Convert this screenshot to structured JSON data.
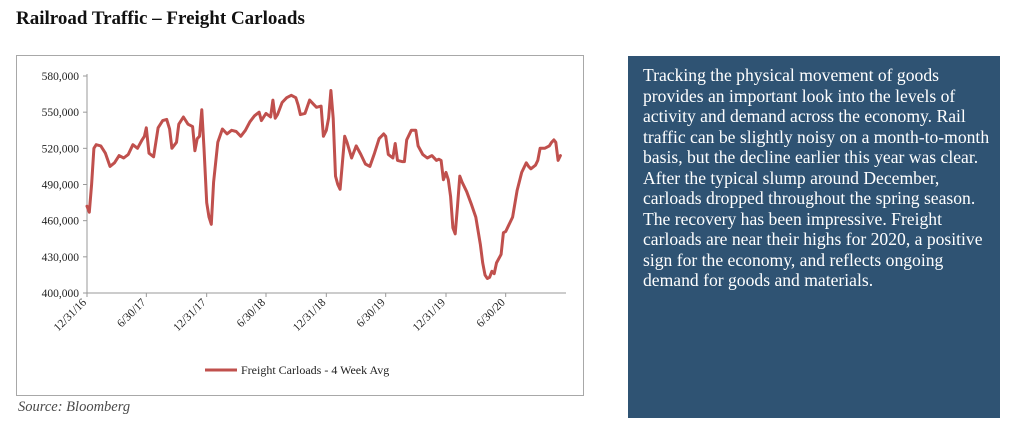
{
  "title": "Railroad Traffic – Freight Carloads",
  "source": "Source: Bloomberg",
  "commentary": "Tracking the physical movement of goods provides an important look into the levels of activity and demand across the economy. Rail traffic can be slightly noisy on a month-to-month basis, but the decline earlier this year was clear. After the typical slump around December, carloads dropped throughout the spring season. The recovery has been impressive. Freight carloads are near their highs for 2020, a positive sign for the economy, and reflects ongoing demand for goods and materials.",
  "colors": {
    "series": "#c0504d",
    "panel": "#2f5373",
    "panel_text": "#ffffff"
  },
  "chart_data": {
    "type": "line",
    "title": "",
    "xlabel": "",
    "ylabel": "",
    "ylim": [
      400000,
      580000
    ],
    "yticks": [
      400000,
      430000,
      460000,
      490000,
      520000,
      550000,
      580000
    ],
    "ytick_labels": [
      "400,000",
      "430,000",
      "460,000",
      "490,000",
      "520,000",
      "550,000",
      "580,000"
    ],
    "xlim": [
      "2016-12-31",
      "2020-12-31"
    ],
    "xtick_dates": [
      "2016-12-31",
      "2017-06-30",
      "2017-12-31",
      "2018-06-30",
      "2018-12-31",
      "2019-06-30",
      "2019-12-31",
      "2020-06-30"
    ],
    "xtick_labels": [
      "12/31/16",
      "6/30/17",
      "12/31/17",
      "6/30/18",
      "12/31/18",
      "6/30/19",
      "12/31/19",
      "6/30/20"
    ],
    "grid": false,
    "legend_position": "bottom-center",
    "series": [
      {
        "name": "Freight Carloads - 4 Week Avg",
        "points": [
          [
            "2016-12-31",
            472000
          ],
          [
            "2017-01-07",
            467000
          ],
          [
            "2017-01-14",
            490000
          ],
          [
            "2017-01-21",
            520000
          ],
          [
            "2017-01-28",
            523000
          ],
          [
            "2017-02-11",
            522000
          ],
          [
            "2017-02-25",
            516000
          ],
          [
            "2017-03-11",
            505000
          ],
          [
            "2017-03-25",
            508000
          ],
          [
            "2017-04-08",
            514000
          ],
          [
            "2017-04-22",
            512000
          ],
          [
            "2017-05-06",
            515000
          ],
          [
            "2017-05-20",
            523000
          ],
          [
            "2017-06-03",
            520000
          ],
          [
            "2017-06-17",
            527000
          ],
          [
            "2017-06-24",
            530000
          ],
          [
            "2017-06-30",
            537000
          ],
          [
            "2017-07-08",
            516000
          ],
          [
            "2017-07-22",
            513000
          ],
          [
            "2017-08-05",
            537000
          ],
          [
            "2017-08-19",
            543000
          ],
          [
            "2017-08-31",
            544000
          ],
          [
            "2017-09-09",
            536000
          ],
          [
            "2017-09-16",
            520000
          ],
          [
            "2017-09-30",
            525000
          ],
          [
            "2017-10-07",
            540000
          ],
          [
            "2017-10-21",
            546000
          ],
          [
            "2017-11-04",
            540000
          ],
          [
            "2017-11-18",
            538000
          ],
          [
            "2017-11-25",
            518000
          ],
          [
            "2017-12-02",
            528000
          ],
          [
            "2017-12-09",
            530000
          ],
          [
            "2017-12-16",
            552000
          ],
          [
            "2017-12-23",
            520000
          ],
          [
            "2017-12-31",
            475000
          ],
          [
            "2018-01-07",
            463000
          ],
          [
            "2018-01-14",
            457000
          ],
          [
            "2018-01-21",
            492000
          ],
          [
            "2018-02-03",
            525000
          ],
          [
            "2018-02-17",
            536000
          ],
          [
            "2018-03-03",
            532000
          ],
          [
            "2018-03-17",
            535000
          ],
          [
            "2018-03-31",
            534000
          ],
          [
            "2018-04-14",
            530000
          ],
          [
            "2018-04-28",
            535000
          ],
          [
            "2018-05-12",
            542000
          ],
          [
            "2018-05-26",
            547000
          ],
          [
            "2018-06-09",
            550000
          ],
          [
            "2018-06-16",
            543000
          ],
          [
            "2018-06-30",
            549000
          ],
          [
            "2018-07-14",
            546000
          ],
          [
            "2018-07-21",
            560000
          ],
          [
            "2018-07-28",
            545000
          ],
          [
            "2018-08-04",
            548000
          ],
          [
            "2018-08-18",
            558000
          ],
          [
            "2018-09-01",
            562000
          ],
          [
            "2018-09-15",
            564000
          ],
          [
            "2018-09-29",
            562000
          ],
          [
            "2018-10-06",
            556000
          ],
          [
            "2018-10-13",
            548000
          ],
          [
            "2018-10-27",
            549000
          ],
          [
            "2018-11-10",
            560000
          ],
          [
            "2018-11-24",
            556000
          ],
          [
            "2018-12-01",
            554000
          ],
          [
            "2018-12-15",
            555000
          ],
          [
            "2018-12-22",
            530000
          ],
          [
            "2018-12-31",
            535000
          ],
          [
            "2019-01-07",
            545000
          ],
          [
            "2019-01-14",
            568000
          ],
          [
            "2019-01-21",
            545000
          ],
          [
            "2019-01-28",
            497000
          ],
          [
            "2019-02-04",
            490000
          ],
          [
            "2019-02-11",
            486000
          ],
          [
            "2019-02-18",
            508000
          ],
          [
            "2019-02-25",
            530000
          ],
          [
            "2019-03-04",
            525000
          ],
          [
            "2019-03-18",
            512000
          ],
          [
            "2019-04-01",
            522000
          ],
          [
            "2019-04-15",
            515000
          ],
          [
            "2019-04-29",
            507000
          ],
          [
            "2019-05-13",
            505000
          ],
          [
            "2019-05-27",
            516000
          ],
          [
            "2019-06-10",
            528000
          ],
          [
            "2019-06-24",
            532000
          ],
          [
            "2019-06-30",
            530000
          ],
          [
            "2019-07-08",
            515000
          ],
          [
            "2019-07-22",
            512000
          ],
          [
            "2019-07-29",
            524000
          ],
          [
            "2019-08-05",
            510000
          ],
          [
            "2019-08-19",
            509000
          ],
          [
            "2019-08-26",
            509000
          ],
          [
            "2019-09-02",
            527000
          ],
          [
            "2019-09-16",
            535000
          ],
          [
            "2019-09-30",
            535000
          ],
          [
            "2019-10-07",
            522000
          ],
          [
            "2019-10-21",
            515000
          ],
          [
            "2019-11-04",
            512000
          ],
          [
            "2019-11-18",
            514000
          ],
          [
            "2019-12-02",
            510000
          ],
          [
            "2019-12-09",
            511000
          ],
          [
            "2019-12-16",
            510000
          ],
          [
            "2019-12-23",
            494000
          ],
          [
            "2019-12-31",
            500000
          ],
          [
            "2020-01-07",
            494000
          ],
          [
            "2020-01-14",
            480000
          ],
          [
            "2020-01-21",
            454000
          ],
          [
            "2020-01-28",
            449000
          ],
          [
            "2020-02-04",
            472000
          ],
          [
            "2020-02-11",
            497000
          ],
          [
            "2020-02-18",
            492000
          ],
          [
            "2020-03-03",
            484000
          ],
          [
            "2020-03-17",
            474000
          ],
          [
            "2020-03-31",
            463000
          ],
          [
            "2020-04-14",
            440000
          ],
          [
            "2020-04-21",
            425000
          ],
          [
            "2020-04-28",
            415000
          ],
          [
            "2020-05-05",
            412000
          ],
          [
            "2020-05-12",
            413000
          ],
          [
            "2020-05-19",
            418000
          ],
          [
            "2020-05-26",
            416000
          ],
          [
            "2020-06-02",
            425000
          ],
          [
            "2020-06-16",
            432000
          ],
          [
            "2020-06-23",
            450000
          ],
          [
            "2020-06-30",
            451000
          ],
          [
            "2020-07-07",
            455000
          ],
          [
            "2020-07-21",
            463000
          ],
          [
            "2020-08-04",
            485000
          ],
          [
            "2020-08-18",
            500000
          ],
          [
            "2020-09-01",
            508000
          ],
          [
            "2020-09-08",
            505000
          ],
          [
            "2020-09-15",
            503000
          ],
          [
            "2020-09-29",
            506000
          ],
          [
            "2020-10-06",
            510000
          ],
          [
            "2020-10-13",
            520000
          ],
          [
            "2020-10-27",
            520000
          ],
          [
            "2020-11-10",
            522000
          ],
          [
            "2020-11-17",
            525000
          ],
          [
            "2020-11-24",
            527000
          ],
          [
            "2020-11-30",
            525000
          ],
          [
            "2020-12-07",
            510000
          ],
          [
            "2020-12-14",
            514000
          ]
        ]
      }
    ]
  }
}
